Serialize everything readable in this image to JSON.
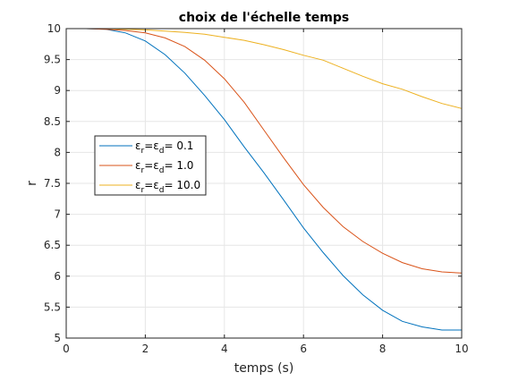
{
  "chart_data": {
    "type": "line",
    "title": "choix de l'échelle temps",
    "xlabel": "temps (s)",
    "ylabel": "r",
    "xlim": [
      0,
      10
    ],
    "ylim": [
      5,
      10
    ],
    "grid": true,
    "legend_position": "middle-left",
    "x_ticks": [
      "0",
      "2",
      "4",
      "6",
      "8",
      "10"
    ],
    "y_ticks": [
      "5",
      "5.5",
      "6",
      "6.5",
      "7",
      "7.5",
      "8",
      "8.5",
      "9",
      "9.5",
      "10"
    ],
    "x": [
      0,
      0.5,
      1,
      1.5,
      2,
      2.5,
      3,
      3.5,
      4,
      4.5,
      5,
      5.5,
      6,
      6.5,
      7,
      7.5,
      8,
      8.5,
      9,
      9.5,
      10
    ],
    "series": [
      {
        "legend": {
          "eps": "ε",
          "sub1": "r",
          "eq": "=",
          "sub2": "d",
          "value": "= 0.1"
        },
        "color": "#0072BD",
        "values": [
          10,
          10,
          9.99,
          9.93,
          9.8,
          9.58,
          9.28,
          8.92,
          8.53,
          8.09,
          7.67,
          7.23,
          6.78,
          6.38,
          6.01,
          5.7,
          5.45,
          5.27,
          5.18,
          5.13,
          5.13
        ]
      },
      {
        "legend": {
          "eps": "ε",
          "sub1": "r",
          "eq": "=",
          "sub2": "d",
          "value": "= 1.0"
        },
        "color": "#D95319",
        "values": [
          10,
          10,
          9.99,
          9.97,
          9.93,
          9.85,
          9.71,
          9.49,
          9.19,
          8.81,
          8.36,
          7.91,
          7.48,
          7.11,
          6.8,
          6.56,
          6.37,
          6.22,
          6.12,
          6.07,
          6.05
        ]
      },
      {
        "legend": {
          "eps": "ε",
          "sub1": "r",
          "eq": "=",
          "sub2": "d",
          "value": "= 10.0"
        },
        "color": "#EDB120",
        "values": [
          10,
          10,
          10,
          9.99,
          9.98,
          9.96,
          9.94,
          9.91,
          9.86,
          9.81,
          9.74,
          9.66,
          9.57,
          9.49,
          9.36,
          9.23,
          9.11,
          9.02,
          8.9,
          8.79,
          8.71
        ]
      }
    ]
  }
}
